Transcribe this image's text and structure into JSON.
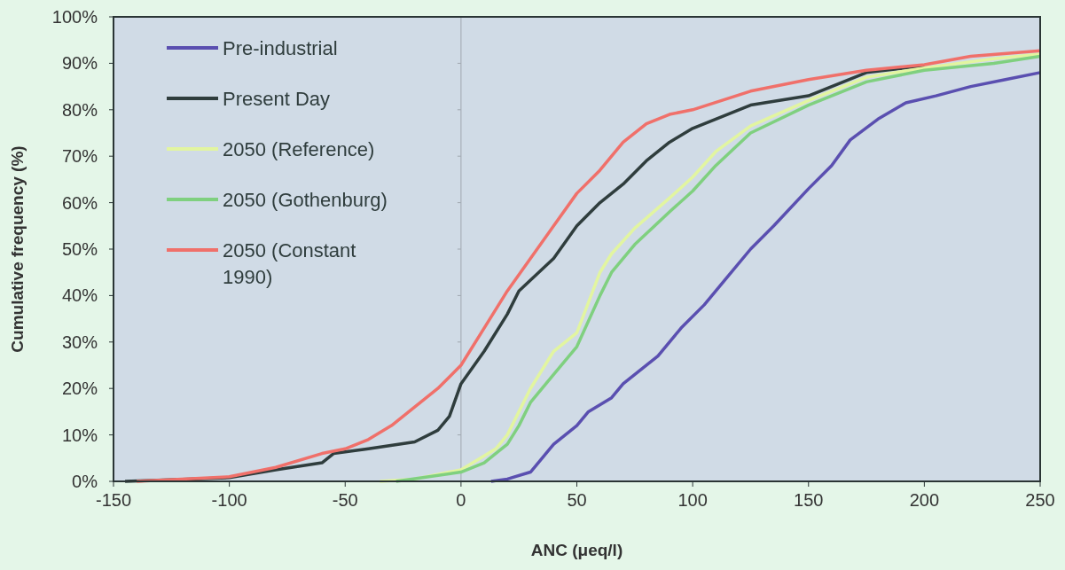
{
  "chart_data": {
    "type": "line",
    "xlabel": "ANC (μeq/l)",
    "ylabel": "Cumulative frequency (%)",
    "xlim": [
      -150,
      250
    ],
    "xticks": [
      -150,
      -100,
      -50,
      0,
      50,
      100,
      150,
      200,
      250
    ],
    "ylim": [
      0,
      100
    ],
    "yticks": [
      {
        "value": 0,
        "label": "0%"
      },
      {
        "value": 10,
        "label": "10%"
      },
      {
        "value": 20,
        "label": "20%"
      },
      {
        "value": 30,
        "label": "30%"
      },
      {
        "value": 40,
        "label": "40%"
      },
      {
        "value": 50,
        "label": "50%"
      },
      {
        "value": 60,
        "label": "60%"
      },
      {
        "value": 70,
        "label": "70%"
      },
      {
        "value": 80,
        "label": "80%"
      },
      {
        "value": 90,
        "label": "90%"
      },
      {
        "value": 100,
        "label": "100%"
      }
    ],
    "grid": false,
    "legend": "top left",
    "ref_lines": [
      {
        "axis": "x",
        "value": 0,
        "color": "#a0a8b0"
      }
    ],
    "series": [
      {
        "name": "Pre-industrial",
        "color": "#5a4fb0",
        "x": [
          13,
          20,
          30,
          35,
          40,
          50,
          55,
          65,
          70,
          85,
          95,
          105,
          115,
          125,
          135,
          150,
          160,
          168,
          180,
          192,
          205,
          220,
          235,
          250
        ],
        "values": [
          0,
          0.5,
          2,
          5,
          8,
          12,
          15,
          18,
          21,
          27,
          33,
          38,
          44,
          50,
          55,
          63,
          68,
          73.5,
          78,
          81.5,
          83,
          85,
          86.5,
          88
        ]
      },
      {
        "name": "Present Day",
        "color": "#2f3d3d",
        "x": [
          -145,
          -100,
          -80,
          -60,
          -55,
          -40,
          -20,
          -10,
          -5,
          0,
          10,
          20,
          25,
          40,
          50,
          60,
          70,
          80,
          90,
          100,
          110,
          125,
          150,
          175,
          200
        ],
        "values": [
          0,
          0.8,
          2.5,
          4,
          6,
          7,
          8.5,
          11,
          14,
          21,
          28,
          36,
          41,
          48,
          55,
          60,
          64,
          69,
          73,
          76,
          78,
          81,
          83,
          88,
          89.5
        ]
      },
      {
        "name": "2050 (Reference)",
        "color": "#e2f5a0",
        "x": [
          -35,
          -20,
          0,
          10,
          15,
          20,
          25,
          30,
          40,
          50,
          60,
          65,
          75,
          90,
          100,
          110,
          125,
          150,
          175,
          200,
          230,
          250
        ],
        "values": [
          0,
          0.5,
          2.5,
          5.5,
          7,
          10,
          15,
          20,
          28,
          32,
          45,
          49,
          54.5,
          61,
          65.5,
          71,
          76.5,
          82,
          87,
          89,
          91,
          92
        ]
      },
      {
        "name": "2050 (Gothenburg)",
        "color": "#7fd07f",
        "x": [
          -28,
          0,
          10,
          20,
          25,
          30,
          40,
          50,
          60,
          65,
          75,
          90,
          100,
          110,
          125,
          150,
          175,
          200,
          230,
          250
        ],
        "values": [
          0,
          2,
          4,
          8,
          12,
          17,
          23,
          29,
          40,
          45,
          51,
          58,
          62.5,
          68,
          75,
          81,
          86,
          88.5,
          90,
          91.5
        ]
      },
      {
        "name": "2050 (Constant 1990)",
        "color": "#f0706a",
        "x": [
          -140,
          -100,
          -80,
          -60,
          -50,
          -40,
          -30,
          -20,
          -10,
          0,
          10,
          20,
          30,
          40,
          50,
          60,
          70,
          80,
          90,
          100,
          125,
          150,
          175,
          200,
          220,
          250
        ],
        "values": [
          0,
          1,
          3,
          6,
          7,
          9,
          12,
          16,
          20,
          25,
          33,
          41,
          48,
          55,
          62,
          67,
          73,
          77,
          79,
          80,
          84,
          86.5,
          88.5,
          89.7,
          91.5,
          92.7
        ]
      }
    ]
  }
}
